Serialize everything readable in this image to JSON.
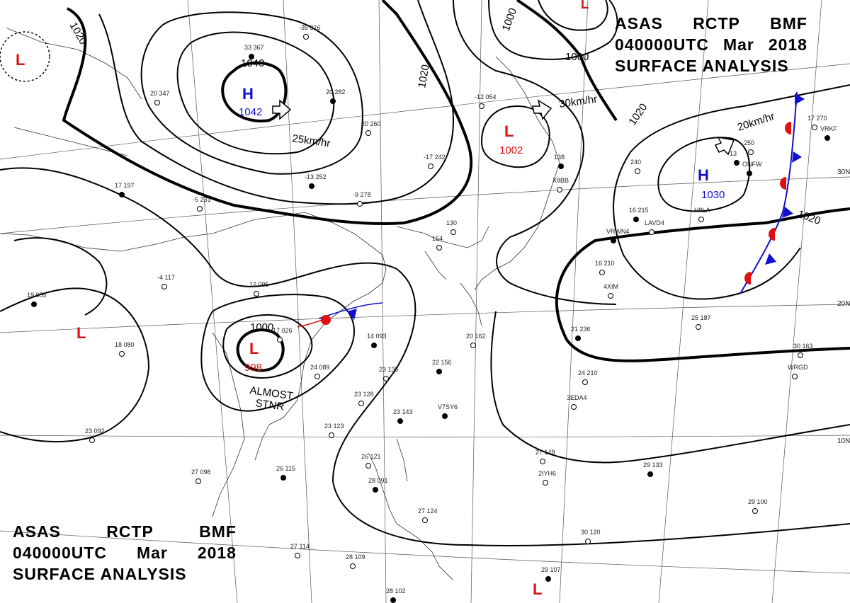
{
  "header": {
    "line1": [
      "ASAS",
      "RCTP",
      "BMF"
    ],
    "line2": [
      "040000UTC",
      "Mar",
      "2018"
    ],
    "line3": "SURFACE ANALYSIS"
  },
  "pressure_centers": [
    {
      "type": "H",
      "value": "1042",
      "color": "#1010d0"
    },
    {
      "type": "H",
      "value": "1030",
      "color": "#1010d0"
    },
    {
      "type": "L",
      "value": "1002",
      "color": "#e01010"
    },
    {
      "type": "L",
      "value": "998",
      "color": "#e01010"
    },
    {
      "type": "L",
      "value": "",
      "color": "#e01010"
    },
    {
      "type": "L",
      "value": "",
      "color": "#e01010"
    },
    {
      "type": "L",
      "value": "",
      "color": "#e01010"
    }
  ],
  "movements": [
    "25km/hr",
    "30km/hr",
    "20km/hr"
  ],
  "isobar_labels": [
    "1040",
    "1020",
    "1020",
    "1020",
    "1020",
    "1000",
    "1000",
    "1000"
  ],
  "notes": [
    "ALMOST",
    "STNR"
  ],
  "latitude_labels": [
    "30N",
    "20N",
    "10N"
  ],
  "stations": [
    "33 367",
    "-35 316",
    "20 347",
    "20 282",
    "20 260",
    "-17 242",
    "-13 252",
    "-9 278",
    "-12 054",
    "138",
    "240",
    "250",
    "13",
    "17 270",
    "-5 231",
    "17 197",
    "-4 117",
    "12 095",
    "19 055",
    "18 080",
    "17 026",
    "14 093",
    "24 089",
    "23 135",
    "22 156",
    "20 162",
    "23 128",
    "23 143",
    "23 092",
    "27 098",
    "26 115",
    "23 123",
    "26 121",
    "28 091",
    "27 114",
    "28 109",
    "28 102",
    "27 124",
    "27 149",
    "29 133",
    "29 100",
    "30 120",
    "29 107",
    "30 163",
    "24 210",
    "21 236",
    "25 187",
    "16 210",
    "16 215",
    "154",
    "130",
    "VRWN4",
    "LAVD4",
    "H9LA",
    "ONFW",
    "X8BB",
    "3EDA4",
    "V7SY6",
    "2IYH6",
    "WRGD",
    "VRKF",
    "4XIM"
  ],
  "colors": {
    "high": "#1010d0",
    "low": "#e01010",
    "warm_front": "#e01010",
    "cold_front": "#1010d0"
  }
}
